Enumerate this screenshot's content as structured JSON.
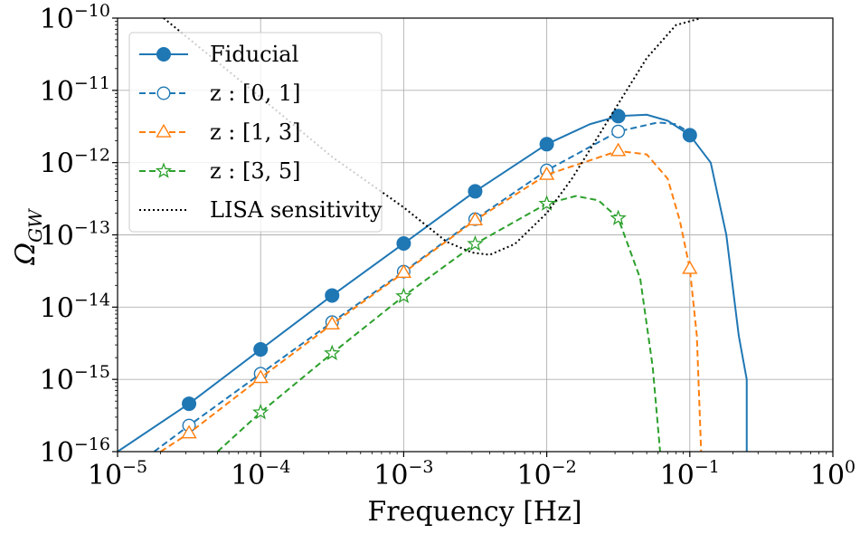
{
  "chart_data": {
    "type": "line",
    "xlabel": "Frequency [Hz]",
    "ylabel": "Ω",
    "ylabel_sub": "GW",
    "xscale": "log",
    "yscale": "log",
    "xlim_exp": [
      -5,
      0
    ],
    "ylim_exp": [
      -16,
      -10
    ],
    "x_ticks": [
      {
        "base": "10",
        "exp": "−5",
        "value_exp": -5
      },
      {
        "base": "10",
        "exp": "−4",
        "value_exp": -4
      },
      {
        "base": "10",
        "exp": "−3",
        "value_exp": -3
      },
      {
        "base": "10",
        "exp": "−2",
        "value_exp": -2
      },
      {
        "base": "10",
        "exp": "−1",
        "value_exp": -1
      },
      {
        "base": "10",
        "exp": "0",
        "value_exp": 0
      }
    ],
    "y_ticks": [
      {
        "base": "10",
        "exp": "−16",
        "value_exp": -16
      },
      {
        "base": "10",
        "exp": "−15",
        "value_exp": -15
      },
      {
        "base": "10",
        "exp": "−14",
        "value_exp": -14
      },
      {
        "base": "10",
        "exp": "−13",
        "value_exp": -13
      },
      {
        "base": "10",
        "exp": "−12",
        "value_exp": -12
      },
      {
        "base": "10",
        "exp": "−11",
        "value_exp": -11
      },
      {
        "base": "10",
        "exp": "−10",
        "value_exp": -10
      }
    ],
    "grid": true,
    "legend_position": "top-left",
    "series": [
      {
        "name": "Fiducial",
        "color": "#1f77b4",
        "dash": "solid",
        "marker": "filled-circle",
        "line": [
          [
            1e-05,
            1e-16
          ],
          [
            3.16e-05,
            4.6e-16
          ],
          [
            0.0001,
            2.6e-15
          ],
          [
            0.000316,
            1.45e-14
          ],
          [
            0.001,
            7.6e-14
          ],
          [
            0.00316,
            4e-13
          ],
          [
            0.01,
            1.8e-12
          ],
          [
            0.02,
            3.4e-12
          ],
          [
            0.0316,
            4.4e-12
          ],
          [
            0.05,
            4.6e-12
          ],
          [
            0.07,
            3.8e-12
          ],
          [
            0.1,
            2.4e-12
          ],
          [
            0.14,
            1e-12
          ],
          [
            0.18,
            1e-13
          ],
          [
            0.22,
            4e-15
          ],
          [
            0.25,
            1e-15
          ],
          [
            0.25,
            1e-16
          ]
        ],
        "markers": [
          [
            3.16e-05,
            4.6e-16
          ],
          [
            0.0001,
            2.6e-15
          ],
          [
            0.000316,
            1.45e-14
          ],
          [
            0.001,
            7.6e-14
          ],
          [
            0.00316,
            4e-13
          ],
          [
            0.01,
            1.8e-12
          ],
          [
            0.0316,
            4.4e-12
          ],
          [
            0.1,
            2.4e-12
          ]
        ]
      },
      {
        "name": "z : [0, 1]",
        "color": "#1f77b4",
        "dash": "dashed",
        "marker": "open-circle",
        "line": [
          [
            1.8e-05,
            1e-16
          ],
          [
            3.16e-05,
            2.3e-16
          ],
          [
            0.0001,
            1.2e-15
          ],
          [
            0.000316,
            6.2e-15
          ],
          [
            0.001,
            3.1e-14
          ],
          [
            0.00316,
            1.65e-13
          ],
          [
            0.01,
            7.8e-13
          ],
          [
            0.0316,
            2.7e-12
          ],
          [
            0.06,
            3.6e-12
          ],
          [
            0.08,
            3.4e-12
          ],
          [
            0.1,
            2.6e-12
          ]
        ],
        "markers": [
          [
            3.16e-05,
            2.3e-16
          ],
          [
            0.0001,
            1.2e-15
          ],
          [
            0.000316,
            6.2e-15
          ],
          [
            0.001,
            3.1e-14
          ],
          [
            0.00316,
            1.65e-13
          ],
          [
            0.01,
            7.8e-13
          ],
          [
            0.0316,
            2.7e-12
          ]
        ]
      },
      {
        "name": "z : [1, 3]",
        "color": "#ff7f0e",
        "dash": "dashed",
        "marker": "open-triangle",
        "line": [
          [
            2e-05,
            1e-16
          ],
          [
            3.16e-05,
            1.8e-16
          ],
          [
            0.0001,
            1.05e-15
          ],
          [
            0.000316,
            5.8e-15
          ],
          [
            0.001,
            3e-14
          ],
          [
            0.00316,
            1.6e-13
          ],
          [
            0.01,
            6.8e-13
          ],
          [
            0.0316,
            1.45e-12
          ],
          [
            0.05,
            1.3e-12
          ],
          [
            0.07,
            6e-13
          ],
          [
            0.085,
            1.6e-13
          ],
          [
            0.1,
            3.4e-14
          ],
          [
            0.112,
            4e-15
          ],
          [
            0.12,
            1e-16
          ]
        ],
        "markers": [
          [
            3.16e-05,
            1.8e-16
          ],
          [
            0.0001,
            1.05e-15
          ],
          [
            0.000316,
            5.8e-15
          ],
          [
            0.001,
            3e-14
          ],
          [
            0.00316,
            1.6e-13
          ],
          [
            0.01,
            6.8e-13
          ],
          [
            0.0316,
            1.45e-12
          ],
          [
            0.1,
            3.4e-14
          ]
        ]
      },
      {
        "name": "z : [3, 5]",
        "color": "#2ca02c",
        "dash": "dashed",
        "marker": "open-star",
        "line": [
          [
            5e-05,
            1e-16
          ],
          [
            0.0001,
            3.5e-16
          ],
          [
            0.000316,
            2.3e-15
          ],
          [
            0.001,
            1.42e-14
          ],
          [
            0.00316,
            7.5e-14
          ],
          [
            0.01,
            2.7e-13
          ],
          [
            0.016,
            3.45e-13
          ],
          [
            0.023,
            3e-13
          ],
          [
            0.0316,
            1.7e-13
          ],
          [
            0.045,
            2.5e-14
          ],
          [
            0.055,
            1.5e-15
          ],
          [
            0.062,
            1e-16
          ]
        ],
        "markers": [
          [
            0.0001,
            3.5e-16
          ],
          [
            0.000316,
            2.3e-15
          ],
          [
            0.001,
            1.42e-14
          ],
          [
            0.00316,
            7.5e-14
          ],
          [
            0.01,
            2.7e-13
          ],
          [
            0.0316,
            1.7e-13
          ]
        ]
      },
      {
        "name": "LISA sensitivity",
        "color": "#000000",
        "dash": "dotted",
        "marker": "none",
        "line": [
          [
            2.1e-05,
            1e-10
          ],
          [
            0.0001,
            8e-12
          ],
          [
            0.000316,
            1.2e-12
          ],
          [
            0.001,
            2.4e-13
          ],
          [
            0.002,
            8e-14
          ],
          [
            0.003,
            5.7e-14
          ],
          [
            0.004,
            5.3e-14
          ],
          [
            0.006,
            7.5e-14
          ],
          [
            0.01,
            2e-13
          ],
          [
            0.015,
            6e-13
          ],
          [
            0.02,
            1.5e-12
          ],
          [
            0.0316,
            6.5e-12
          ],
          [
            0.05,
            2.8e-11
          ],
          [
            0.08,
            8e-11
          ],
          [
            0.12,
            1e-10
          ]
        ],
        "markers": []
      }
    ]
  }
}
